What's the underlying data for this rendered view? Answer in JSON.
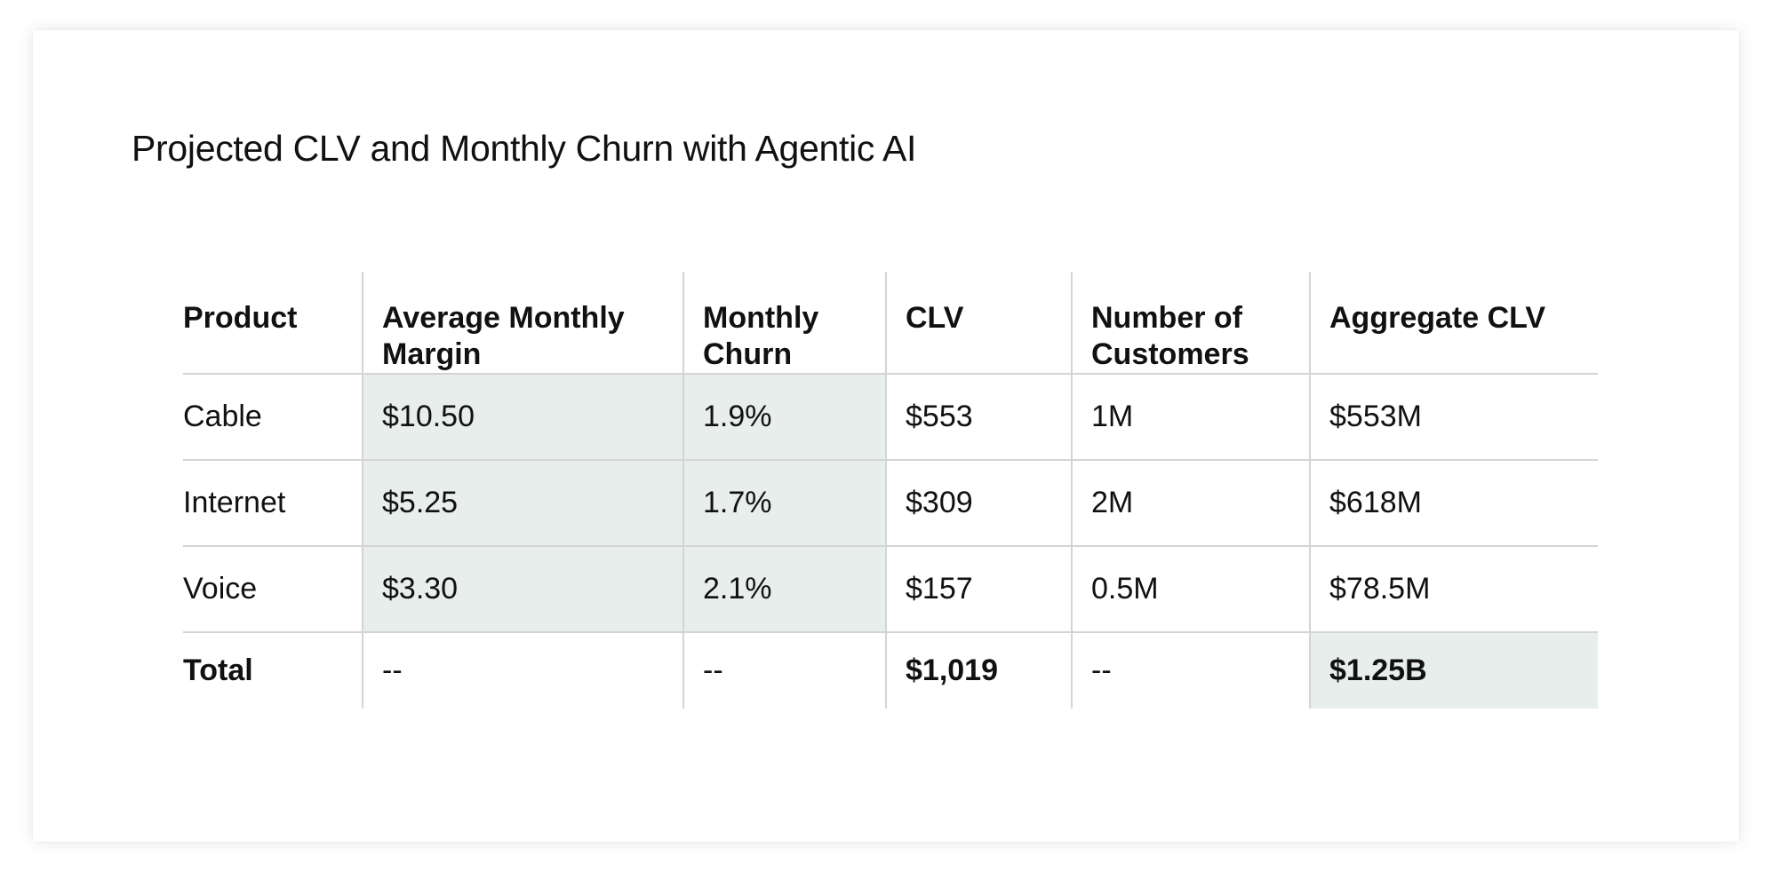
{
  "title": "Projected CLV and Monthly Churn with Agentic AI",
  "table": {
    "headers": [
      "Product",
      "Average Monthly Margin",
      "Monthly Churn",
      "CLV",
      "Number of Customers",
      "Aggregate CLV"
    ],
    "rows": [
      [
        "Cable",
        "$10.50",
        "1.9%",
        "$553",
        "1M",
        "$553M"
      ],
      [
        "Internet",
        "$5.25",
        "1.7%",
        "$309",
        "2M",
        "$618M"
      ],
      [
        "Voice",
        "$3.30",
        "2.1%",
        "$157",
        "0.5M",
        "$78.5M"
      ]
    ],
    "total": [
      "Total",
      "--",
      "--",
      "$1,019",
      "--",
      "$1.25B"
    ]
  },
  "colors": {
    "highlight": "#e7eeec",
    "rule": "#d4d4d4",
    "text": "#111111"
  }
}
